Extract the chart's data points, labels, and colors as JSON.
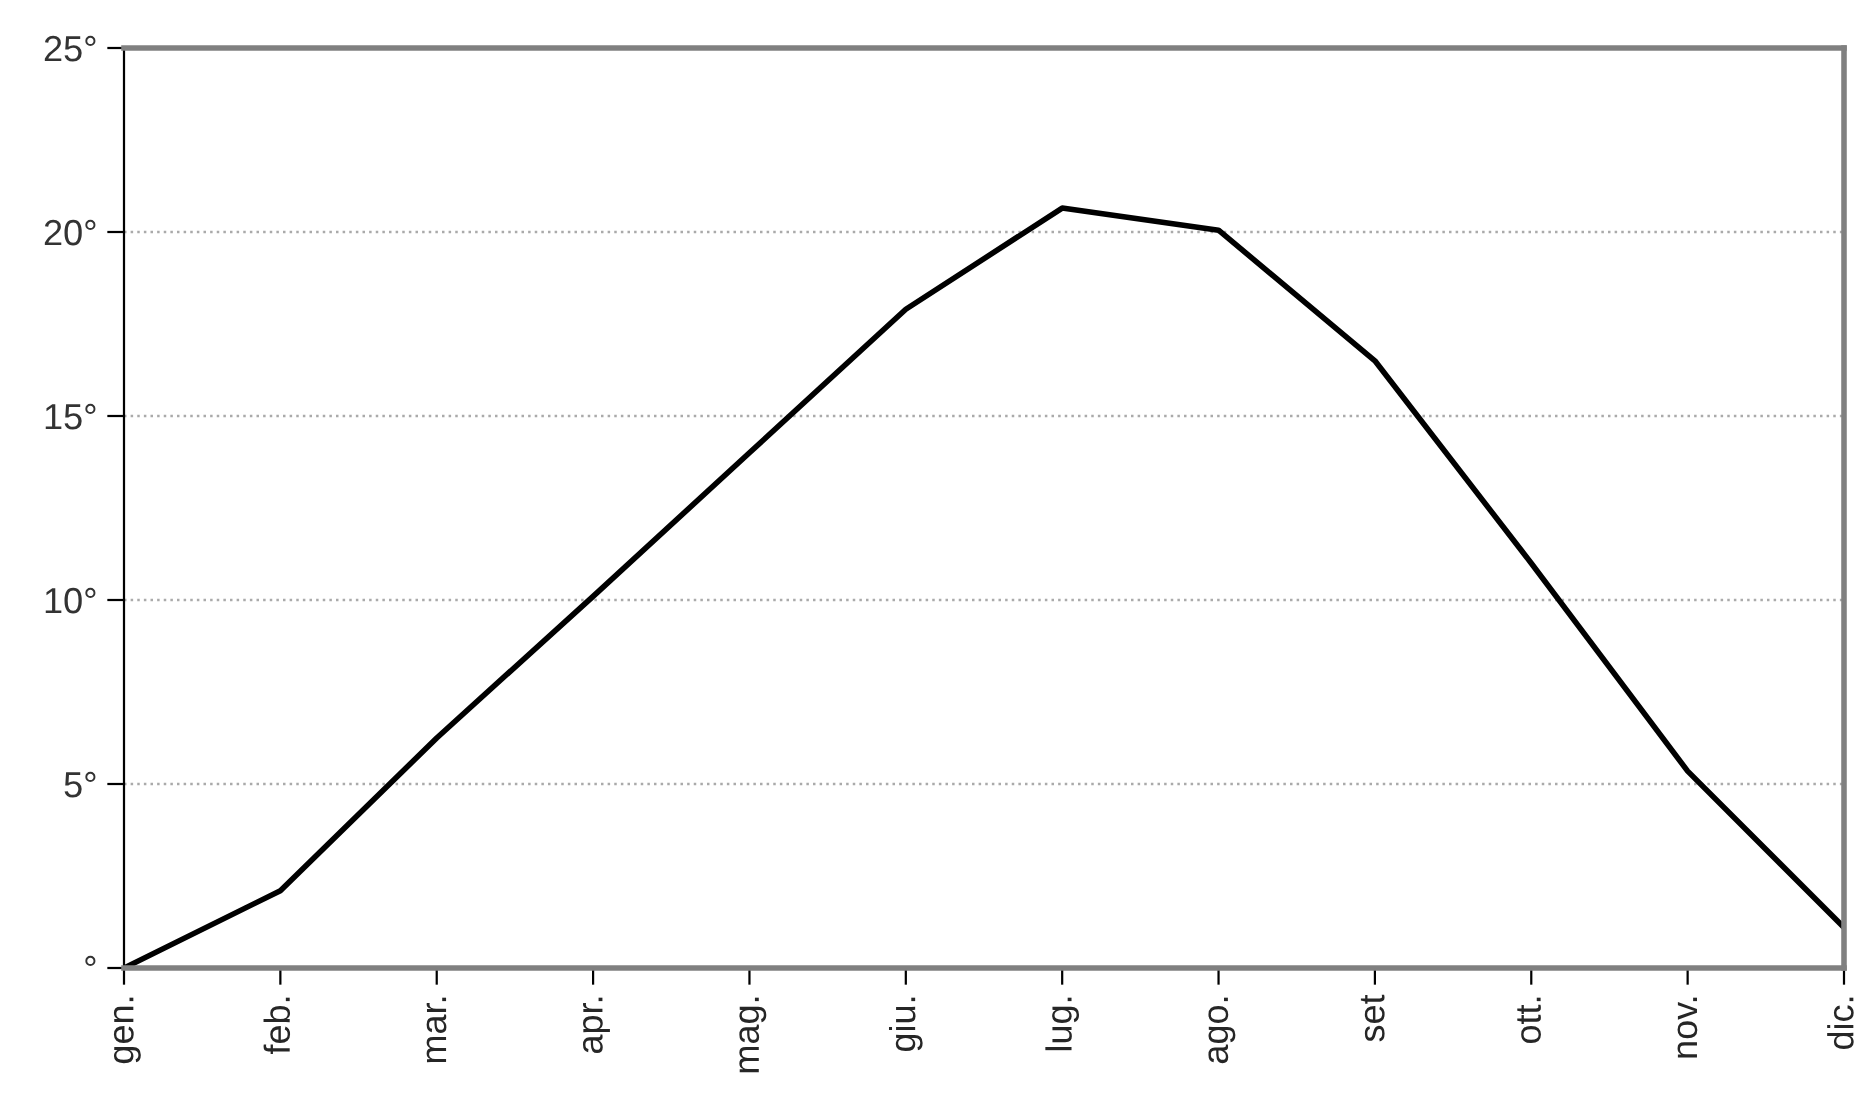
{
  "chart_data": {
    "type": "line",
    "categories": [
      "gen.",
      "feb.",
      "mar.",
      "apr.",
      "mag.",
      "giu.",
      "lug.",
      "ago.",
      "set",
      "ott.",
      "nov.",
      "dic."
    ],
    "series": [
      {
        "color": "#000000",
        "values": [
          0,
          2.1,
          6.25,
          10.1,
          14.0,
          17.9,
          20.65,
          20.05,
          16.5,
          11.0,
          5.35,
          1.1
        ]
      }
    ],
    "ylim": [
      0,
      25
    ],
    "yticks": [
      {
        "value": 0,
        "label": "°"
      },
      {
        "value": 5,
        "label": "5°"
      },
      {
        "value": 10,
        "label": "10°"
      },
      {
        "value": 15,
        "label": "15°"
      },
      {
        "value": 20,
        "label": "20°"
      },
      {
        "value": 25,
        "label": "25°"
      }
    ],
    "grid": "y",
    "marker": "none",
    "line_style": "solid",
    "legend": false
  }
}
